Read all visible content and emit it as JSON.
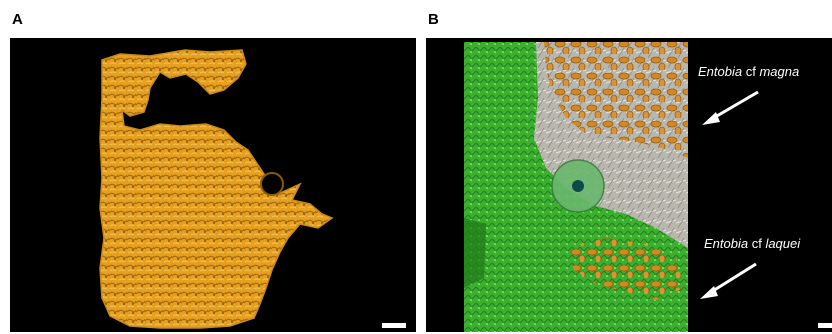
{
  "figure": {
    "panel_a": {
      "label": "A",
      "colors": {
        "background": "#000000",
        "specimen": "#e6a020",
        "specimen_shadow": "#a86c0c"
      }
    },
    "panel_b": {
      "label": "B",
      "annotations": [
        {
          "italic": "Entobia",
          "plain": " cf ",
          "italic2": "magna"
        },
        {
          "italic": "Entobia",
          "plain": " cf ",
          "italic2": "laquei"
        }
      ],
      "colors": {
        "background": "#000000",
        "green": "#3bb02e",
        "gold": "#d08a22",
        "grey": "#b9b6ad"
      }
    }
  }
}
